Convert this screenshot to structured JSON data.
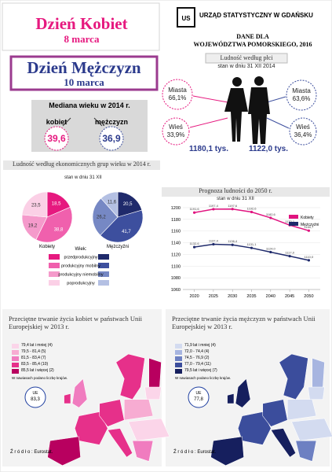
{
  "header": {
    "title_women": "Dzień Kobiet",
    "date_women": "8 marca",
    "title_men": "Dzień Mężczyzn",
    "date_men": "10 marca",
    "office": "URZĄD STATYSTYCZNY W GDAŃSKU",
    "data_for": "DANE DLA",
    "region": "WOJEWÓDZTWA POMORSKIEGO, 2016"
  },
  "median_age": {
    "title": "Mediana wieku w 2014 r.",
    "women_label": "kobiet",
    "women_value": "39,6",
    "men_label": "mężczyzn",
    "men_value": "36,9"
  },
  "population_by_sex": {
    "title": "Ludność według płci",
    "subtitle": "stan w dniu 31 XII 2014",
    "women": {
      "city_label": "Miasta",
      "city": "66,1%",
      "rural_label": "Wieś",
      "rural": "33,9%",
      "total": "1180,1 tys."
    },
    "men": {
      "city_label": "Miasta",
      "city": "63,6%",
      "rural_label": "Wieś",
      "rural": "36,4%",
      "total": "1122,0 tys."
    }
  },
  "chart_data": [
    {
      "type": "pie",
      "title": "Ludność według ekonomicznych grup wieku w 2014 r.",
      "subtitle": "stan w dniu 31 XII",
      "legend_title": "Wiek:",
      "categories": [
        "przedprodukcyjny",
        "produkcyjny mobilny",
        "produkcyjny niemobilny",
        "poprodukcyjny"
      ],
      "series": [
        {
          "name": "Kobiety",
          "values": [
            18.5,
            38.8,
            19.2,
            23.5
          ],
          "value_labels": [
            "18,5",
            "38,8",
            "19,2",
            "23,5"
          ],
          "colors": [
            "#e6197f",
            "#f060ad",
            "#f59acb",
            "#fbd0e6"
          ]
        },
        {
          "name": "Mężczyźni",
          "values": [
            20.5,
            41.7,
            26.2,
            11.6
          ],
          "value_labels": [
            "20,5",
            "41,7",
            "26,2",
            "11,6"
          ],
          "colors": [
            "#1f2a6b",
            "#3d4f9e",
            "#7688c4",
            "#b4c0e3"
          ]
        }
      ]
    },
    {
      "type": "line",
      "title": "Prognoza ludności do 2050 r.",
      "subtitle": "stan w dniu 31 XII",
      "x": [
        2020,
        2025,
        2030,
        2035,
        2040,
        2045,
        2050
      ],
      "xlim": [
        2017,
        2053
      ],
      "xticks": [
        2020,
        2025,
        2030,
        2035,
        2040,
        2045,
        2050
      ],
      "ylim": [
        1060,
        1200
      ],
      "yticks": [
        1060,
        1080,
        1100,
        1120,
        1140,
        1160,
        1180,
        1200
      ],
      "grid": true,
      "series": [
        {
          "name": "Kobiety",
          "color": "#e0137f",
          "values": [
            1191.6,
            1197.4,
            1197.6,
            1192.6,
            1182.6,
            1170.1,
            1160.7
          ],
          "value_labels": [
            "1191,6",
            "1197,4",
            "1197,6",
            "1192,6",
            "1182,6",
            "1170,1",
            "1160,7"
          ]
        },
        {
          "name": "Mężczyźni",
          "color": "#1f2a6b",
          "values": [
            1132.6,
            1137.4,
            1136.4,
            1131.1,
            1124.0,
            1117.0,
            1110.0
          ],
          "value_labels": [
            "1132,6",
            "1137,4",
            "1136,4",
            "1131,1",
            "1124,0",
            "1117,0",
            "1110,0"
          ]
        }
      ]
    }
  ],
  "maps": [
    {
      "title": "Przeciętne trwanie życia kobiet w państwach Unii Europejskiej w 2013 r.",
      "legend": [
        "79,4 lat i mniej (4)",
        "79,5 - 81,4 (5)",
        "81,5 - 83,4 (7)",
        "83,5 - 85,4 (10)",
        "85,5 lat i więcej (2)"
      ],
      "note": "W nawiasach podano liczbę krajów.",
      "eu_label": "UE",
      "eu_value": "83,3",
      "source": "Ź r ó d ł o : Eurostat."
    },
    {
      "title": "Przeciętne trwanie życia mężczyzn w państwach Unii Europejskiej w 2013 r.",
      "legend": [
        "71,9 lat i mniej (4)",
        "72,0 - 74,4 (4)",
        "74,5 - 76,9 (2)",
        "77,0 - 79,4 (11)",
        "79,5 lat i więcej (7)"
      ],
      "note": "W nawiasach podano liczbę krajów.",
      "eu_label": "UE",
      "eu_value": "77,8",
      "source": "Ź r ó d ł o : Eurostat."
    }
  ]
}
